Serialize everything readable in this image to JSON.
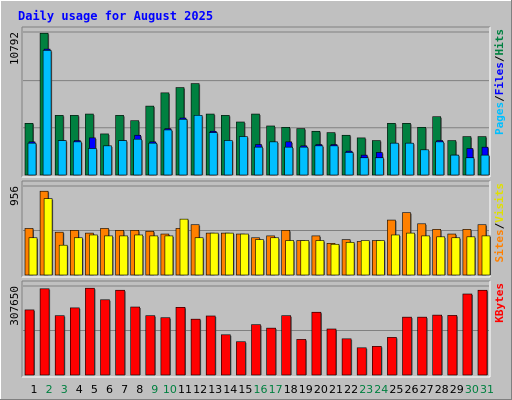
{
  "chart_data": {
    "type": "bar",
    "title": "Daily usage for August 2025",
    "days": [
      "1",
      "2",
      "3",
      "4",
      "5",
      "6",
      "7",
      "8",
      "9",
      "10",
      "11",
      "12",
      "13",
      "14",
      "15",
      "16",
      "17",
      "18",
      "19",
      "20",
      "21",
      "22",
      "23",
      "24",
      "25",
      "26",
      "27",
      "28",
      "29",
      "30",
      "31"
    ],
    "weekend_days": [
      "2",
      "3",
      "9",
      "10",
      "16",
      "17",
      "23",
      "24",
      "30",
      "31"
    ],
    "panels": {
      "hits": {
        "ylabel_parts": [
          "Pages",
          "/",
          "Files",
          "/",
          "Hits"
        ],
        "ymax_label": "10792",
        "ylim": [
          0,
          10792
        ],
        "series": [
          {
            "name": "Hits",
            "color": "#008040",
            "values": [
              3900,
              10700,
              4500,
              4500,
              4600,
              3100,
              4500,
              4100,
              5200,
              6200,
              6600,
              6900,
              4600,
              4500,
              4000,
              4600,
              3700,
              3600,
              3500,
              3300,
              3200,
              3000,
              2800,
              2600,
              3900,
              3900,
              3600,
              4400,
              2600,
              2900,
              2900
            ]
          },
          {
            "name": "Files",
            "color": "#0000ff",
            "values": [
              2500,
              9500,
              2600,
              2600,
              2800,
              2200,
              2600,
              3000,
              2500,
              3500,
              4300,
              4200,
              3300,
              2500,
              2500,
              2300,
              2500,
              2500,
              2200,
              2300,
              2300,
              1800,
              1500,
              1700,
              2400,
              2400,
              1900,
              2600,
              1500,
              2000,
              2100
            ]
          },
          {
            "name": "Pages",
            "color": "#00bfff",
            "values": [
              2400,
              9400,
              2600,
              2500,
              2000,
              2200,
              2600,
              2700,
              2400,
              3400,
              4200,
              4500,
              3200,
              2600,
              2900,
              2100,
              2500,
              2100,
              2100,
              2200,
              2200,
              1700,
              1300,
              1300,
              2400,
              2400,
              1900,
              2500,
              1500,
              1300,
              1500
            ]
          }
        ]
      },
      "visits": {
        "ylabel_parts": [
          "Sites",
          "/",
          "Visits"
        ],
        "ymax_label": "956",
        "ylim": [
          0,
          956
        ],
        "series": [
          {
            "name": "Visits",
            "color": "#ff8000",
            "values": [
              500,
              900,
              460,
              480,
              450,
              500,
              480,
              480,
              470,
              440,
              500,
              540,
              450,
              450,
              440,
              400,
              420,
              480,
              370,
              420,
              340,
              380,
              360,
              370,
              590,
              670,
              550,
              490,
              440,
              490,
              540
            ]
          },
          {
            "name": "Sites",
            "color": "#ffff00",
            "values": [
              400,
              820,
              320,
              400,
              430,
              420,
              420,
              430,
              420,
              420,
              600,
              400,
              450,
              450,
              440,
              380,
              400,
              370,
              370,
              370,
              330,
              350,
              370,
              370,
              430,
              450,
              420,
              410,
              400,
              410,
              420
            ]
          }
        ]
      },
      "kbytes": {
        "ylabel_parts": [
          "KBytes"
        ],
        "ymax_label": "307650",
        "ylim": [
          0,
          307650
        ],
        "series": [
          {
            "name": "KBytes",
            "color": "#ff0000",
            "values": [
              225000,
              298000,
              205000,
              232000,
              300000,
              260000,
              293000,
              235000,
              205000,
              198000,
              234000,
              193000,
              204000,
              139000,
              115000,
              174000,
              162000,
              205000,
              123000,
              217000,
              159000,
              125000,
              94000,
              99000,
              130000,
              200000,
              200000,
              207000,
              206000,
              280000,
              293000
            ]
          }
        ]
      }
    },
    "colors": {
      "title": "#0000ff",
      "hits_label": "#008040",
      "files_label": "#0000ff",
      "pages_label": "#00bfff",
      "sites_label": "#ff8000",
      "visits_label": "#e0e000",
      "kbytes_label": "#ff0000",
      "weekday": "#000000",
      "weekend": "#008040"
    }
  }
}
